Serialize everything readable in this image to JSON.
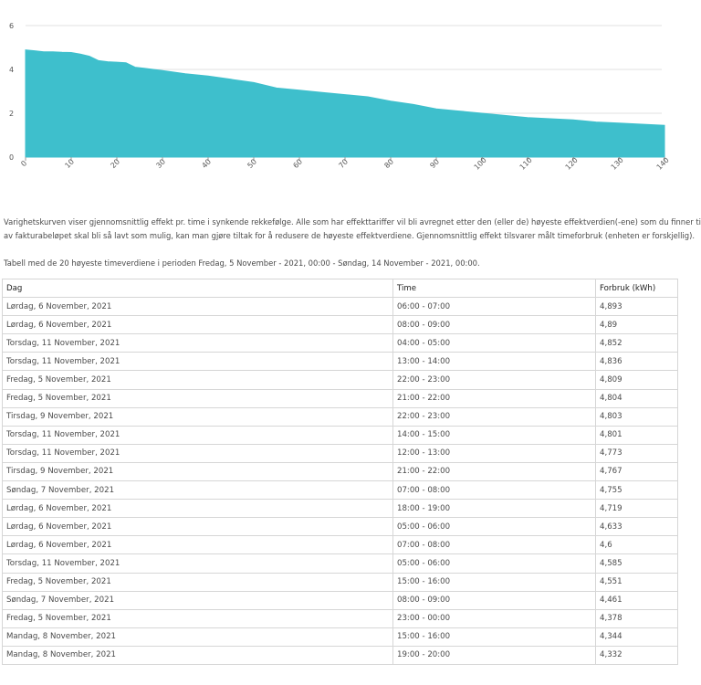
{
  "chart_data": {
    "type": "area",
    "x": [
      0,
      2,
      4,
      6,
      8,
      10,
      12,
      14,
      16,
      18,
      20,
      22,
      24,
      26,
      28,
      30,
      35,
      40,
      45,
      50,
      55,
      60,
      65,
      70,
      75,
      80,
      85,
      90,
      95,
      100,
      105,
      110,
      115,
      120,
      125,
      130,
      135,
      140
    ],
    "y": [
      4.89,
      4.85,
      4.8,
      4.8,
      4.78,
      4.77,
      4.7,
      4.6,
      4.4,
      4.35,
      4.33,
      4.3,
      4.1,
      4.05,
      4.0,
      3.95,
      3.8,
      3.7,
      3.55,
      3.4,
      3.15,
      3.05,
      2.95,
      2.85,
      2.75,
      2.55,
      2.4,
      2.2,
      2.1,
      2.0,
      1.9,
      1.8,
      1.75,
      1.7,
      1.6,
      1.55,
      1.5,
      1.45
    ],
    "xticks": [
      0,
      10,
      20,
      30,
      40,
      50,
      60,
      70,
      80,
      90,
      100,
      110,
      120,
      130,
      140
    ],
    "yticks": [
      0,
      2,
      4,
      6
    ],
    "xlim": [
      0,
      140
    ],
    "ylim": [
      0,
      6
    ],
    "grid": true,
    "color": "#3ebfcc"
  },
  "description": {
    "line1": "Varighetskurven viser gjennomsnittlig effekt pr. time i synkende rekkefølge. Alle som har effekttariffer vil bli avregnet etter den (eller de) høyeste effektverdien(-ene) som du finner ti",
    "line2": "av fakturabeløpet skal bli så lavt som mulig, kan man gjøre tiltak for å redusere de høyeste effektverdiene. Gjennomsnittlig effekt tilsvarer målt timeforbruk (enheten er forskjellig)."
  },
  "table": {
    "caption": "Tabell med de 20 høyeste timeverdiene i perioden Fredag, 5 November - 2021, 00:00 - Søndag, 14 November - 2021, 00:00.",
    "headers": {
      "day": "Dag",
      "time": "Time",
      "usage": "Forbruk (kWh)"
    },
    "rows": [
      {
        "day": "Lørdag, 6 November, 2021",
        "time": "06:00 - 07:00",
        "usage": "4,893"
      },
      {
        "day": "Lørdag, 6 November, 2021",
        "time": "08:00 - 09:00",
        "usage": "4,89"
      },
      {
        "day": "Torsdag, 11 November, 2021",
        "time": "04:00 - 05:00",
        "usage": "4,852"
      },
      {
        "day": "Torsdag, 11 November, 2021",
        "time": "13:00 - 14:00",
        "usage": "4,836"
      },
      {
        "day": "Fredag, 5 November, 2021",
        "time": "22:00 - 23:00",
        "usage": "4,809"
      },
      {
        "day": "Fredag, 5 November, 2021",
        "time": "21:00 - 22:00",
        "usage": "4,804"
      },
      {
        "day": "Tirsdag, 9 November, 2021",
        "time": "22:00 - 23:00",
        "usage": "4,803"
      },
      {
        "day": "Torsdag, 11 November, 2021",
        "time": "14:00 - 15:00",
        "usage": "4,801"
      },
      {
        "day": "Torsdag, 11 November, 2021",
        "time": "12:00 - 13:00",
        "usage": "4,773"
      },
      {
        "day": "Tirsdag, 9 November, 2021",
        "time": "21:00 - 22:00",
        "usage": "4,767"
      },
      {
        "day": "Søndag, 7 November, 2021",
        "time": "07:00 - 08:00",
        "usage": "4,755"
      },
      {
        "day": "Lørdag, 6 November, 2021",
        "time": "18:00 - 19:00",
        "usage": "4,719"
      },
      {
        "day": "Lørdag, 6 November, 2021",
        "time": "05:00 - 06:00",
        "usage": "4,633"
      },
      {
        "day": "Lørdag, 6 November, 2021",
        "time": "07:00 - 08:00",
        "usage": "4,6"
      },
      {
        "day": "Torsdag, 11 November, 2021",
        "time": "05:00 - 06:00",
        "usage": "4,585"
      },
      {
        "day": "Fredag, 5 November, 2021",
        "time": "15:00 - 16:00",
        "usage": "4,551"
      },
      {
        "day": "Søndag, 7 November, 2021",
        "time": "08:00 - 09:00",
        "usage": "4,461"
      },
      {
        "day": "Fredag, 5 November, 2021",
        "time": "23:00 - 00:00",
        "usage": "4,378"
      },
      {
        "day": "Mandag, 8 November, 2021",
        "time": "15:00 - 16:00",
        "usage": "4,344"
      },
      {
        "day": "Mandag, 8 November, 2021",
        "time": "19:00 - 20:00",
        "usage": "4,332"
      }
    ]
  }
}
